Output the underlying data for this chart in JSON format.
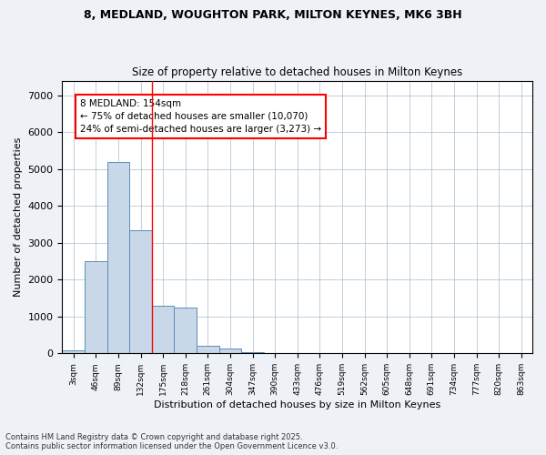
{
  "title_line1": "8, MEDLAND, WOUGHTON PARK, MILTON KEYNES, MK6 3BH",
  "title_line2": "Size of property relative to detached houses in Milton Keynes",
  "xlabel": "Distribution of detached houses by size in Milton Keynes",
  "ylabel": "Number of detached properties",
  "categories": [
    "3sqm",
    "46sqm",
    "89sqm",
    "132sqm",
    "175sqm",
    "218sqm",
    "261sqm",
    "304sqm",
    "347sqm",
    "390sqm",
    "433sqm",
    "476sqm",
    "519sqm",
    "562sqm",
    "605sqm",
    "648sqm",
    "691sqm",
    "734sqm",
    "777sqm",
    "820sqm",
    "863sqm"
  ],
  "values": [
    80,
    2500,
    5200,
    3350,
    1300,
    1250,
    200,
    130,
    40,
    10,
    0,
    0,
    0,
    0,
    0,
    0,
    0,
    0,
    0,
    0,
    0
  ],
  "bar_color": "#c8d8e8",
  "bar_edge_color": "#5b8db8",
  "vline_color": "red",
  "annotation_text": "8 MEDLAND: 154sqm\n← 75% of detached houses are smaller (10,070)\n24% of semi-detached houses are larger (3,273) →",
  "ylim": [
    0,
    7400
  ],
  "yticks": [
    0,
    1000,
    2000,
    3000,
    4000,
    5000,
    6000,
    7000
  ],
  "footer_line1": "Contains HM Land Registry data © Crown copyright and database right 2025.",
  "footer_line2": "Contains public sector information licensed under the Open Government Licence v3.0.",
  "bg_color": "#eef2f7",
  "plot_bg_color": "#ffffff"
}
